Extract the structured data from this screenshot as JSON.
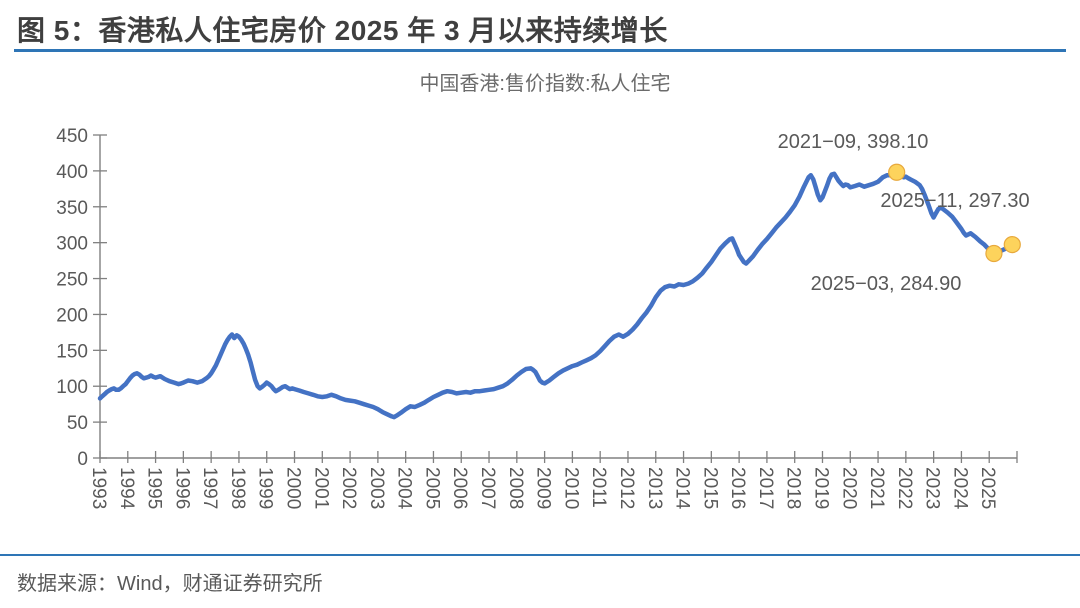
{
  "figure": {
    "title": "图 5：香港私人住宅房价 2025 年 3 月以来持续增长",
    "source": "数据来源：Wind，财通证券研究所"
  },
  "colors": {
    "accent_rule": "#2e75b6",
    "line": "#4472c4",
    "marker_fill": "#fdd35c",
    "marker_stroke": "#e8a93d",
    "axis": "#808080",
    "label_text": "#595959",
    "annotation_text": "#595959",
    "title_text": "#3f3f3f"
  },
  "chart_data": {
    "type": "line",
    "title": "中国香港:售价指数:私人住宅",
    "xlabel": "",
    "ylabel": "",
    "grid": false,
    "legend_position": "none",
    "ylim": [
      0,
      450
    ],
    "yticks": [
      0,
      50,
      100,
      150,
      200,
      250,
      300,
      350,
      400,
      450
    ],
    "xlim": [
      1993,
      2026
    ],
    "xticks": [
      1993,
      1994,
      1995,
      1996,
      1997,
      1998,
      1999,
      2000,
      2001,
      2002,
      2003,
      2004,
      2005,
      2006,
      2007,
      2008,
      2009,
      2010,
      2011,
      2012,
      2013,
      2014,
      2015,
      2016,
      2017,
      2018,
      2019,
      2020,
      2021,
      2022,
      2023,
      2024,
      2025
    ],
    "series": [
      {
        "name": "中国香港:售价指数:私人住宅",
        "points": [
          [
            1993.0,
            83
          ],
          [
            1993.08,
            86
          ],
          [
            1993.17,
            89
          ],
          [
            1993.25,
            92
          ],
          [
            1993.33,
            94
          ],
          [
            1993.42,
            96
          ],
          [
            1993.5,
            97
          ],
          [
            1993.58,
            95
          ],
          [
            1993.67,
            95
          ],
          [
            1993.75,
            97
          ],
          [
            1993.83,
            100
          ],
          [
            1993.92,
            103
          ],
          [
            1994.0,
            107
          ],
          [
            1994.08,
            111
          ],
          [
            1994.17,
            115
          ],
          [
            1994.25,
            117
          ],
          [
            1994.33,
            118
          ],
          [
            1994.42,
            116
          ],
          [
            1994.5,
            113
          ],
          [
            1994.58,
            111
          ],
          [
            1994.67,
            112
          ],
          [
            1994.75,
            113
          ],
          [
            1994.83,
            115
          ],
          [
            1994.92,
            113
          ],
          [
            1995.0,
            112
          ],
          [
            1995.17,
            114
          ],
          [
            1995.33,
            110
          ],
          [
            1995.5,
            107
          ],
          [
            1995.67,
            105
          ],
          [
            1995.83,
            103
          ],
          [
            1995.92,
            104
          ],
          [
            1996.0,
            105
          ],
          [
            1996.17,
            108
          ],
          [
            1996.33,
            107
          ],
          [
            1996.5,
            105
          ],
          [
            1996.67,
            107
          ],
          [
            1996.83,
            111
          ],
          [
            1996.92,
            114
          ],
          [
            1997.0,
            118
          ],
          [
            1997.08,
            123
          ],
          [
            1997.17,
            129
          ],
          [
            1997.25,
            136
          ],
          [
            1997.33,
            143
          ],
          [
            1997.42,
            151
          ],
          [
            1997.5,
            158
          ],
          [
            1997.58,
            164
          ],
          [
            1997.67,
            169
          ],
          [
            1997.75,
            172
          ],
          [
            1997.83,
            167
          ],
          [
            1997.92,
            171
          ],
          [
            1998.0,
            169
          ],
          [
            1998.08,
            165
          ],
          [
            1998.17,
            159
          ],
          [
            1998.25,
            152
          ],
          [
            1998.33,
            144
          ],
          [
            1998.42,
            133
          ],
          [
            1998.5,
            121
          ],
          [
            1998.58,
            109
          ],
          [
            1998.67,
            100
          ],
          [
            1998.75,
            97
          ],
          [
            1998.83,
            99
          ],
          [
            1998.92,
            102
          ],
          [
            1999.0,
            105
          ],
          [
            1999.08,
            103
          ],
          [
            1999.17,
            100
          ],
          [
            1999.25,
            96
          ],
          [
            1999.33,
            93
          ],
          [
            1999.42,
            95
          ],
          [
            1999.5,
            97
          ],
          [
            1999.58,
            99
          ],
          [
            1999.67,
            100
          ],
          [
            1999.75,
            98
          ],
          [
            1999.83,
            96
          ],
          [
            1999.92,
            97
          ],
          [
            2000.0,
            96
          ],
          [
            2000.17,
            94
          ],
          [
            2000.33,
            92
          ],
          [
            2000.5,
            90
          ],
          [
            2000.67,
            88
          ],
          [
            2000.83,
            86
          ],
          [
            2001.0,
            85
          ],
          [
            2001.17,
            86
          ],
          [
            2001.33,
            88
          ],
          [
            2001.5,
            86
          ],
          [
            2001.67,
            83
          ],
          [
            2001.83,
            81
          ],
          [
            2002.0,
            80
          ],
          [
            2002.17,
            79
          ],
          [
            2002.33,
            77
          ],
          [
            2002.5,
            75
          ],
          [
            2002.67,
            73
          ],
          [
            2002.83,
            71
          ],
          [
            2003.0,
            68
          ],
          [
            2003.17,
            64
          ],
          [
            2003.33,
            61
          ],
          [
            2003.5,
            58
          ],
          [
            2003.58,
            57
          ],
          [
            2003.67,
            59
          ],
          [
            2003.83,
            63
          ],
          [
            2004.0,
            68
          ],
          [
            2004.17,
            72
          ],
          [
            2004.33,
            71
          ],
          [
            2004.5,
            74
          ],
          [
            2004.67,
            77
          ],
          [
            2004.83,
            81
          ],
          [
            2005.0,
            85
          ],
          [
            2005.17,
            88
          ],
          [
            2005.33,
            91
          ],
          [
            2005.5,
            93
          ],
          [
            2005.67,
            92
          ],
          [
            2005.83,
            90
          ],
          [
            2006.0,
            91
          ],
          [
            2006.17,
            92
          ],
          [
            2006.33,
            91
          ],
          [
            2006.5,
            93
          ],
          [
            2006.67,
            93
          ],
          [
            2006.83,
            94
          ],
          [
            2007.0,
            95
          ],
          [
            2007.17,
            96
          ],
          [
            2007.33,
            98
          ],
          [
            2007.5,
            100
          ],
          [
            2007.67,
            104
          ],
          [
            2007.83,
            109
          ],
          [
            2008.0,
            115
          ],
          [
            2008.17,
            120
          ],
          [
            2008.33,
            124
          ],
          [
            2008.5,
            125
          ],
          [
            2008.58,
            123
          ],
          [
            2008.67,
            120
          ],
          [
            2008.75,
            114
          ],
          [
            2008.83,
            108
          ],
          [
            2008.92,
            105
          ],
          [
            2009.0,
            104
          ],
          [
            2009.17,
            108
          ],
          [
            2009.33,
            113
          ],
          [
            2009.5,
            118
          ],
          [
            2009.67,
            122
          ],
          [
            2009.83,
            125
          ],
          [
            2010.0,
            128
          ],
          [
            2010.17,
            130
          ],
          [
            2010.33,
            133
          ],
          [
            2010.5,
            136
          ],
          [
            2010.67,
            139
          ],
          [
            2010.83,
            143
          ],
          [
            2011.0,
            149
          ],
          [
            2011.17,
            156
          ],
          [
            2011.33,
            163
          ],
          [
            2011.5,
            169
          ],
          [
            2011.67,
            172
          ],
          [
            2011.83,
            169
          ],
          [
            2012.0,
            173
          ],
          [
            2012.17,
            179
          ],
          [
            2012.33,
            186
          ],
          [
            2012.5,
            195
          ],
          [
            2012.67,
            203
          ],
          [
            2012.83,
            212
          ],
          [
            2013.0,
            224
          ],
          [
            2013.17,
            233
          ],
          [
            2013.33,
            238
          ],
          [
            2013.5,
            240
          ],
          [
            2013.67,
            239
          ],
          [
            2013.83,
            242
          ],
          [
            2014.0,
            241
          ],
          [
            2014.17,
            243
          ],
          [
            2014.33,
            246
          ],
          [
            2014.5,
            251
          ],
          [
            2014.67,
            257
          ],
          [
            2014.83,
            265
          ],
          [
            2015.0,
            273
          ],
          [
            2015.17,
            283
          ],
          [
            2015.33,
            292
          ],
          [
            2015.5,
            299
          ],
          [
            2015.67,
            305
          ],
          [
            2015.75,
            306
          ],
          [
            2015.83,
            299
          ],
          [
            2015.92,
            291
          ],
          [
            2016.0,
            283
          ],
          [
            2016.17,
            273
          ],
          [
            2016.25,
            271
          ],
          [
            2016.33,
            274
          ],
          [
            2016.5,
            281
          ],
          [
            2016.67,
            290
          ],
          [
            2016.83,
            298
          ],
          [
            2017.0,
            305
          ],
          [
            2017.17,
            313
          ],
          [
            2017.33,
            321
          ],
          [
            2017.5,
            328
          ],
          [
            2017.67,
            335
          ],
          [
            2017.83,
            343
          ],
          [
            2018.0,
            352
          ],
          [
            2018.17,
            364
          ],
          [
            2018.33,
            378
          ],
          [
            2018.5,
            391
          ],
          [
            2018.58,
            394
          ],
          [
            2018.67,
            388
          ],
          [
            2018.75,
            378
          ],
          [
            2018.83,
            367
          ],
          [
            2018.92,
            359
          ],
          [
            2019.0,
            363
          ],
          [
            2019.08,
            371
          ],
          [
            2019.17,
            380
          ],
          [
            2019.25,
            389
          ],
          [
            2019.33,
            395
          ],
          [
            2019.42,
            396
          ],
          [
            2019.5,
            391
          ],
          [
            2019.58,
            386
          ],
          [
            2019.67,
            382
          ],
          [
            2019.75,
            379
          ],
          [
            2019.83,
            381
          ],
          [
            2019.92,
            380
          ],
          [
            2020.0,
            377
          ],
          [
            2020.17,
            379
          ],
          [
            2020.33,
            381
          ],
          [
            2020.5,
            378
          ],
          [
            2020.67,
            380
          ],
          [
            2020.83,
            382
          ],
          [
            2021.0,
            385
          ],
          [
            2021.17,
            391
          ],
          [
            2021.33,
            394
          ],
          [
            2021.5,
            394
          ],
          [
            2021.58,
            396
          ],
          [
            2021.67,
            398.1
          ],
          [
            2021.75,
            396
          ],
          [
            2021.83,
            393
          ],
          [
            2021.92,
            391
          ],
          [
            2022.0,
            392
          ],
          [
            2022.08,
            390
          ],
          [
            2022.17,
            388
          ],
          [
            2022.33,
            385
          ],
          [
            2022.5,
            380
          ],
          [
            2022.58,
            375
          ],
          [
            2022.67,
            367
          ],
          [
            2022.83,
            351
          ],
          [
            2022.92,
            341
          ],
          [
            2023.0,
            335
          ],
          [
            2023.08,
            341
          ],
          [
            2023.17,
            347
          ],
          [
            2023.25,
            349
          ],
          [
            2023.33,
            347
          ],
          [
            2023.5,
            342
          ],
          [
            2023.67,
            336
          ],
          [
            2023.83,
            328
          ],
          [
            2024.0,
            319
          ],
          [
            2024.08,
            314
          ],
          [
            2024.17,
            310
          ],
          [
            2024.33,
            313
          ],
          [
            2024.5,
            308
          ],
          [
            2024.67,
            302
          ],
          [
            2024.83,
            297
          ],
          [
            2025.0,
            290
          ],
          [
            2025.08,
            287
          ],
          [
            2025.17,
            284.9
          ],
          [
            2025.33,
            287
          ],
          [
            2025.5,
            290
          ],
          [
            2025.67,
            293
          ],
          [
            2025.83,
            297.3
          ]
        ]
      }
    ],
    "highlights": [
      {
        "x": 2021.67,
        "value": 398.1,
        "label": "2021−09, 398.10",
        "label_cx": 853,
        "label_cy": 148
      },
      {
        "x": 2025.83,
        "value": 297.3,
        "label": "2025−11, 297.30",
        "label_cx": 955,
        "label_cy": 207
      },
      {
        "x": 2025.17,
        "value": 284.9,
        "label": "2025−03, 284.90",
        "label_cx": 886,
        "label_cy": 290
      }
    ]
  }
}
